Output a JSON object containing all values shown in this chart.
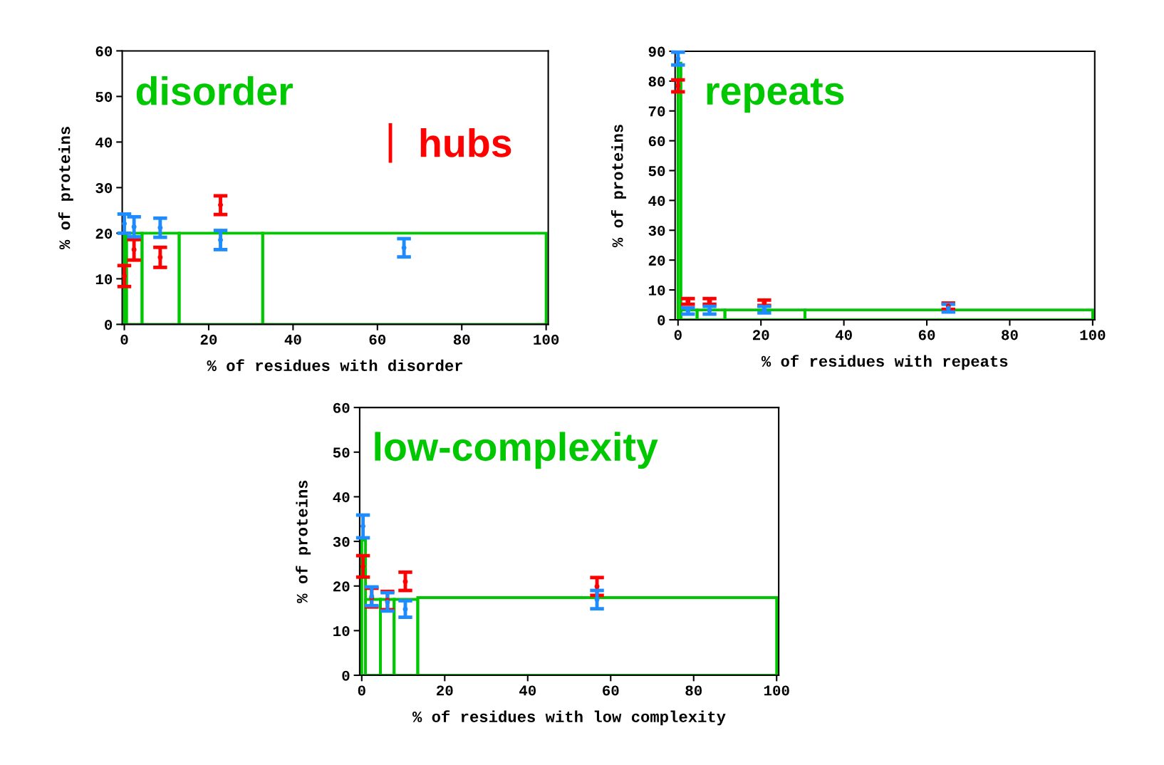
{
  "chart_data": [
    {
      "type": "histogram",
      "xlabel": "% of residues with disorder",
      "ylabel": "% of proteins",
      "bins": [
        0,
        0.5,
        4.2,
        13,
        32.8,
        100
      ],
      "values": [
        20,
        20,
        20,
        20,
        20
      ],
      "color": "#00c800",
      "xlim": [
        -0.5,
        100.5
      ],
      "ylim": [
        0,
        60
      ],
      "xticks": [
        0,
        20,
        40,
        60,
        80,
        100
      ],
      "yticks": [
        0,
        10,
        20,
        30,
        40,
        50,
        60
      ],
      "annotations": [
        "disorder"
      ],
      "legend": "right",
      "grid": false,
      "series": [
        {
          "type": "scatter",
          "name": "hubs",
          "color": "#ff0000",
          "x": [
            0,
            2.3,
            8.5,
            22.8
          ],
          "values": [
            10.6,
            16.4,
            14.7,
            26.2
          ],
          "errors": [
            [
              8.3,
              12.9
            ],
            [
              14.1,
              18.6
            ],
            [
              12.5,
              16.9
            ],
            [
              24.1,
              28.2
            ]
          ]
        },
        {
          "type": "scatter",
          "color": "#1e8cff",
          "x": [
            0,
            2.3,
            8.5,
            22.8,
            66.3
          ],
          "values": [
            22.1,
            21.4,
            21.2,
            18.5,
            16.8
          ],
          "errors": [
            [
              20.0,
              24.2
            ],
            [
              19.2,
              23.6
            ],
            [
              19.1,
              23.3
            ],
            [
              16.4,
              20.6
            ],
            [
              14.8,
              18.8
            ]
          ]
        }
      ]
    },
    {
      "type": "histogram",
      "xlabel": "% of residues with repeats",
      "ylabel": "% of proteins",
      "bins": [
        0,
        0.7,
        4.6,
        11.3,
        30.6,
        100
      ],
      "values": [
        86,
        3.3,
        3.3,
        3.3,
        3.3
      ],
      "color": "#00c800",
      "xlim": [
        -0.7,
        100.5
      ],
      "ylim": [
        0,
        90
      ],
      "xticks": [
        0,
        20,
        40,
        60,
        80,
        100
      ],
      "yticks": [
        0,
        10,
        20,
        30,
        40,
        50,
        60,
        70,
        80,
        90
      ],
      "annotations": [
        "repeats"
      ],
      "grid": false,
      "series": [
        {
          "type": "scatter",
          "color": "#ff0000",
          "x": [
            0,
            2.4,
            7.6,
            20.8,
            65.2
          ],
          "values": [
            78.4,
            6.2,
            6.2,
            5.7,
            4.6
          ],
          "errors": [
            [
              76.4,
              80.4
            ],
            [
              5.2,
              7.1
            ],
            [
              5.2,
              7.1
            ],
            [
              4.8,
              6.6
            ],
            [
              3.5,
              5.6
            ]
          ]
        },
        {
          "type": "scatter",
          "color": "#1e8cff",
          "x": [
            0,
            2.4,
            7.6,
            20.8,
            65.2
          ],
          "values": [
            87.5,
            3.0,
            3.2,
            3.4,
            3.9
          ],
          "errors": [
            [
              85.4,
              89.7
            ],
            [
              1.9,
              4.0
            ],
            [
              1.9,
              4.5
            ],
            [
              2.3,
              4.5
            ],
            [
              2.6,
              5.2
            ]
          ]
        }
      ]
    },
    {
      "type": "histogram",
      "xlabel": "% of residues with low complexity",
      "ylabel": "% of proteins",
      "bins": [
        0,
        0.9,
        4.5,
        7.8,
        13.5,
        100
      ],
      "values": [
        30.3,
        17.0,
        17.0,
        17.0,
        17.4
      ],
      "color": "#00c800",
      "xlim": [
        -0.5,
        100.5
      ],
      "ylim": [
        0,
        60
      ],
      "xticks": [
        0,
        20,
        40,
        60,
        80,
        100
      ],
      "yticks": [
        0,
        10,
        20,
        30,
        40,
        50,
        60
      ],
      "annotations": [
        "low-complexity"
      ],
      "grid": false,
      "series": [
        {
          "type": "scatter",
          "color": "#ff0000",
          "x": [
            0.3,
            2.4,
            6.2,
            10.5,
            56.7
          ],
          "values": [
            24.4,
            17.4,
            16.8,
            21.0,
            19.9
          ],
          "errors": [
            [
              22.0,
              26.8
            ],
            [
              15.3,
              19.5
            ],
            [
              14.7,
              18.8
            ],
            [
              19.0,
              23.1
            ],
            [
              17.9,
              21.9
            ]
          ]
        },
        {
          "type": "scatter",
          "color": "#1e8cff",
          "x": [
            0.3,
            2.4,
            6.2,
            10.5,
            56.7
          ],
          "values": [
            33.4,
            17.7,
            16.4,
            14.8,
            17.0
          ],
          "errors": [
            [
              30.8,
              35.9
            ],
            [
              15.6,
              19.8
            ],
            [
              14.4,
              18.5
            ],
            [
              13.0,
              16.7
            ],
            [
              14.9,
              19.0
            ]
          ]
        }
      ]
    }
  ]
}
